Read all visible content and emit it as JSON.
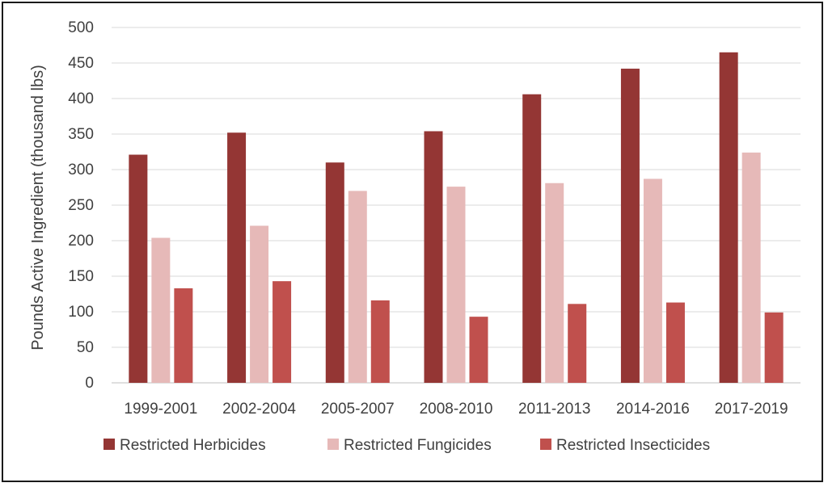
{
  "chart_data": {
    "type": "bar",
    "title": "",
    "xlabel": "",
    "ylabel": "Pounds Active Ingredient (thousand lbs)",
    "ylim": [
      0,
      500
    ],
    "ytick_step": 50,
    "grid": true,
    "legend_position": "bottom",
    "categories": [
      "1999-2001",
      "2002-2004",
      "2005-2007",
      "2008-2010",
      "2011-2013",
      "2014-2016",
      "2017-2019"
    ],
    "series": [
      {
        "name": "Restricted Herbicides",
        "color": "#943634",
        "values": [
          321,
          352,
          310,
          354,
          406,
          442,
          465
        ]
      },
      {
        "name": "Restricted Fungicides",
        "color": "#E6B9B8",
        "values": [
          204,
          221,
          270,
          276,
          281,
          287,
          324
        ]
      },
      {
        "name": "Restricted Insecticides",
        "color": "#C0504D",
        "values": [
          133,
          143,
          116,
          93,
          111,
          113,
          99
        ]
      }
    ]
  }
}
